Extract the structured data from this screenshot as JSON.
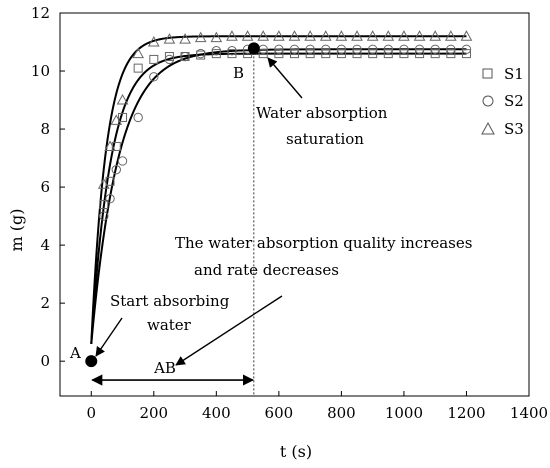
{
  "chart_data": {
    "type": "scatter",
    "xlabel": "t (s)",
    "ylabel": "m (g)",
    "xlim": [
      -100,
      1400
    ],
    "ylim": [
      -1.2,
      12
    ],
    "xticks": [
      0,
      200,
      400,
      600,
      800,
      1000,
      1200,
      1400
    ],
    "yticks": [
      0,
      2,
      4,
      6,
      8,
      10,
      12
    ],
    "grid": false,
    "legend_position": "right",
    "series": [
      {
        "name": "S1",
        "marker": "square",
        "x": [
          0,
          40,
          60,
          80,
          100,
          150,
          200,
          250,
          300,
          350,
          400,
          450,
          500,
          550,
          600,
          650,
          700,
          750,
          800,
          850,
          900,
          950,
          1000,
          1050,
          1100,
          1150,
          1200
        ],
        "y": [
          0,
          5.4,
          6.2,
          7.4,
          8.4,
          10.1,
          10.4,
          10.5,
          10.5,
          10.55,
          10.6,
          10.6,
          10.6,
          10.6,
          10.6,
          10.6,
          10.6,
          10.6,
          10.6,
          10.6,
          10.6,
          10.6,
          10.6,
          10.6,
          10.6,
          10.6,
          10.6
        ],
        "fit": {
          "amplitude": 10.6,
          "rate": 0.016
        }
      },
      {
        "name": "S2",
        "marker": "circle",
        "x": [
          0,
          40,
          60,
          80,
          100,
          150,
          200,
          250,
          300,
          350,
          400,
          450,
          500,
          550,
          600,
          650,
          700,
          750,
          800,
          850,
          900,
          950,
          1000,
          1050,
          1100,
          1150,
          1200
        ],
        "y": [
          0,
          5.0,
          5.6,
          6.6,
          6.9,
          8.4,
          9.8,
          10.4,
          10.5,
          10.6,
          10.7,
          10.7,
          10.75,
          10.75,
          10.75,
          10.75,
          10.75,
          10.75,
          10.75,
          10.75,
          10.75,
          10.75,
          10.75,
          10.75,
          10.75,
          10.75,
          10.75
        ],
        "fit": {
          "amplitude": 10.75,
          "rate": 0.0115
        }
      },
      {
        "name": "S3",
        "marker": "triangle",
        "x": [
          0,
          40,
          60,
          80,
          100,
          150,
          200,
          250,
          300,
          350,
          400,
          450,
          500,
          550,
          600,
          650,
          700,
          750,
          800,
          850,
          900,
          950,
          1000,
          1050,
          1100,
          1150,
          1200
        ],
        "y": [
          0,
          6.1,
          7.4,
          8.3,
          9.0,
          10.6,
          11.0,
          11.1,
          11.1,
          11.15,
          11.15,
          11.2,
          11.2,
          11.2,
          11.2,
          11.2,
          11.2,
          11.2,
          11.2,
          11.2,
          11.2,
          11.2,
          11.2,
          11.2,
          11.2,
          11.2,
          11.2
        ],
        "fit": {
          "amplitude": 11.2,
          "rate": 0.021
        }
      }
    ],
    "points": [
      {
        "label": "A",
        "x": 0,
        "y": 0
      },
      {
        "label": "B",
        "x": 520,
        "y": 10.78
      }
    ],
    "saturation_line_x": 520,
    "range_arrow": {
      "label": "AB",
      "x_from": 0,
      "x_to": 520,
      "y": -0.65
    },
    "annotations": [
      {
        "text_lines": [
          "Start absorbing",
          "water"
        ]
      },
      {
        "text_lines": [
          "Water absorption",
          "saturation"
        ]
      },
      {
        "text_lines": [
          "The water absorption quality increases",
          "and rate decreases"
        ]
      }
    ]
  }
}
